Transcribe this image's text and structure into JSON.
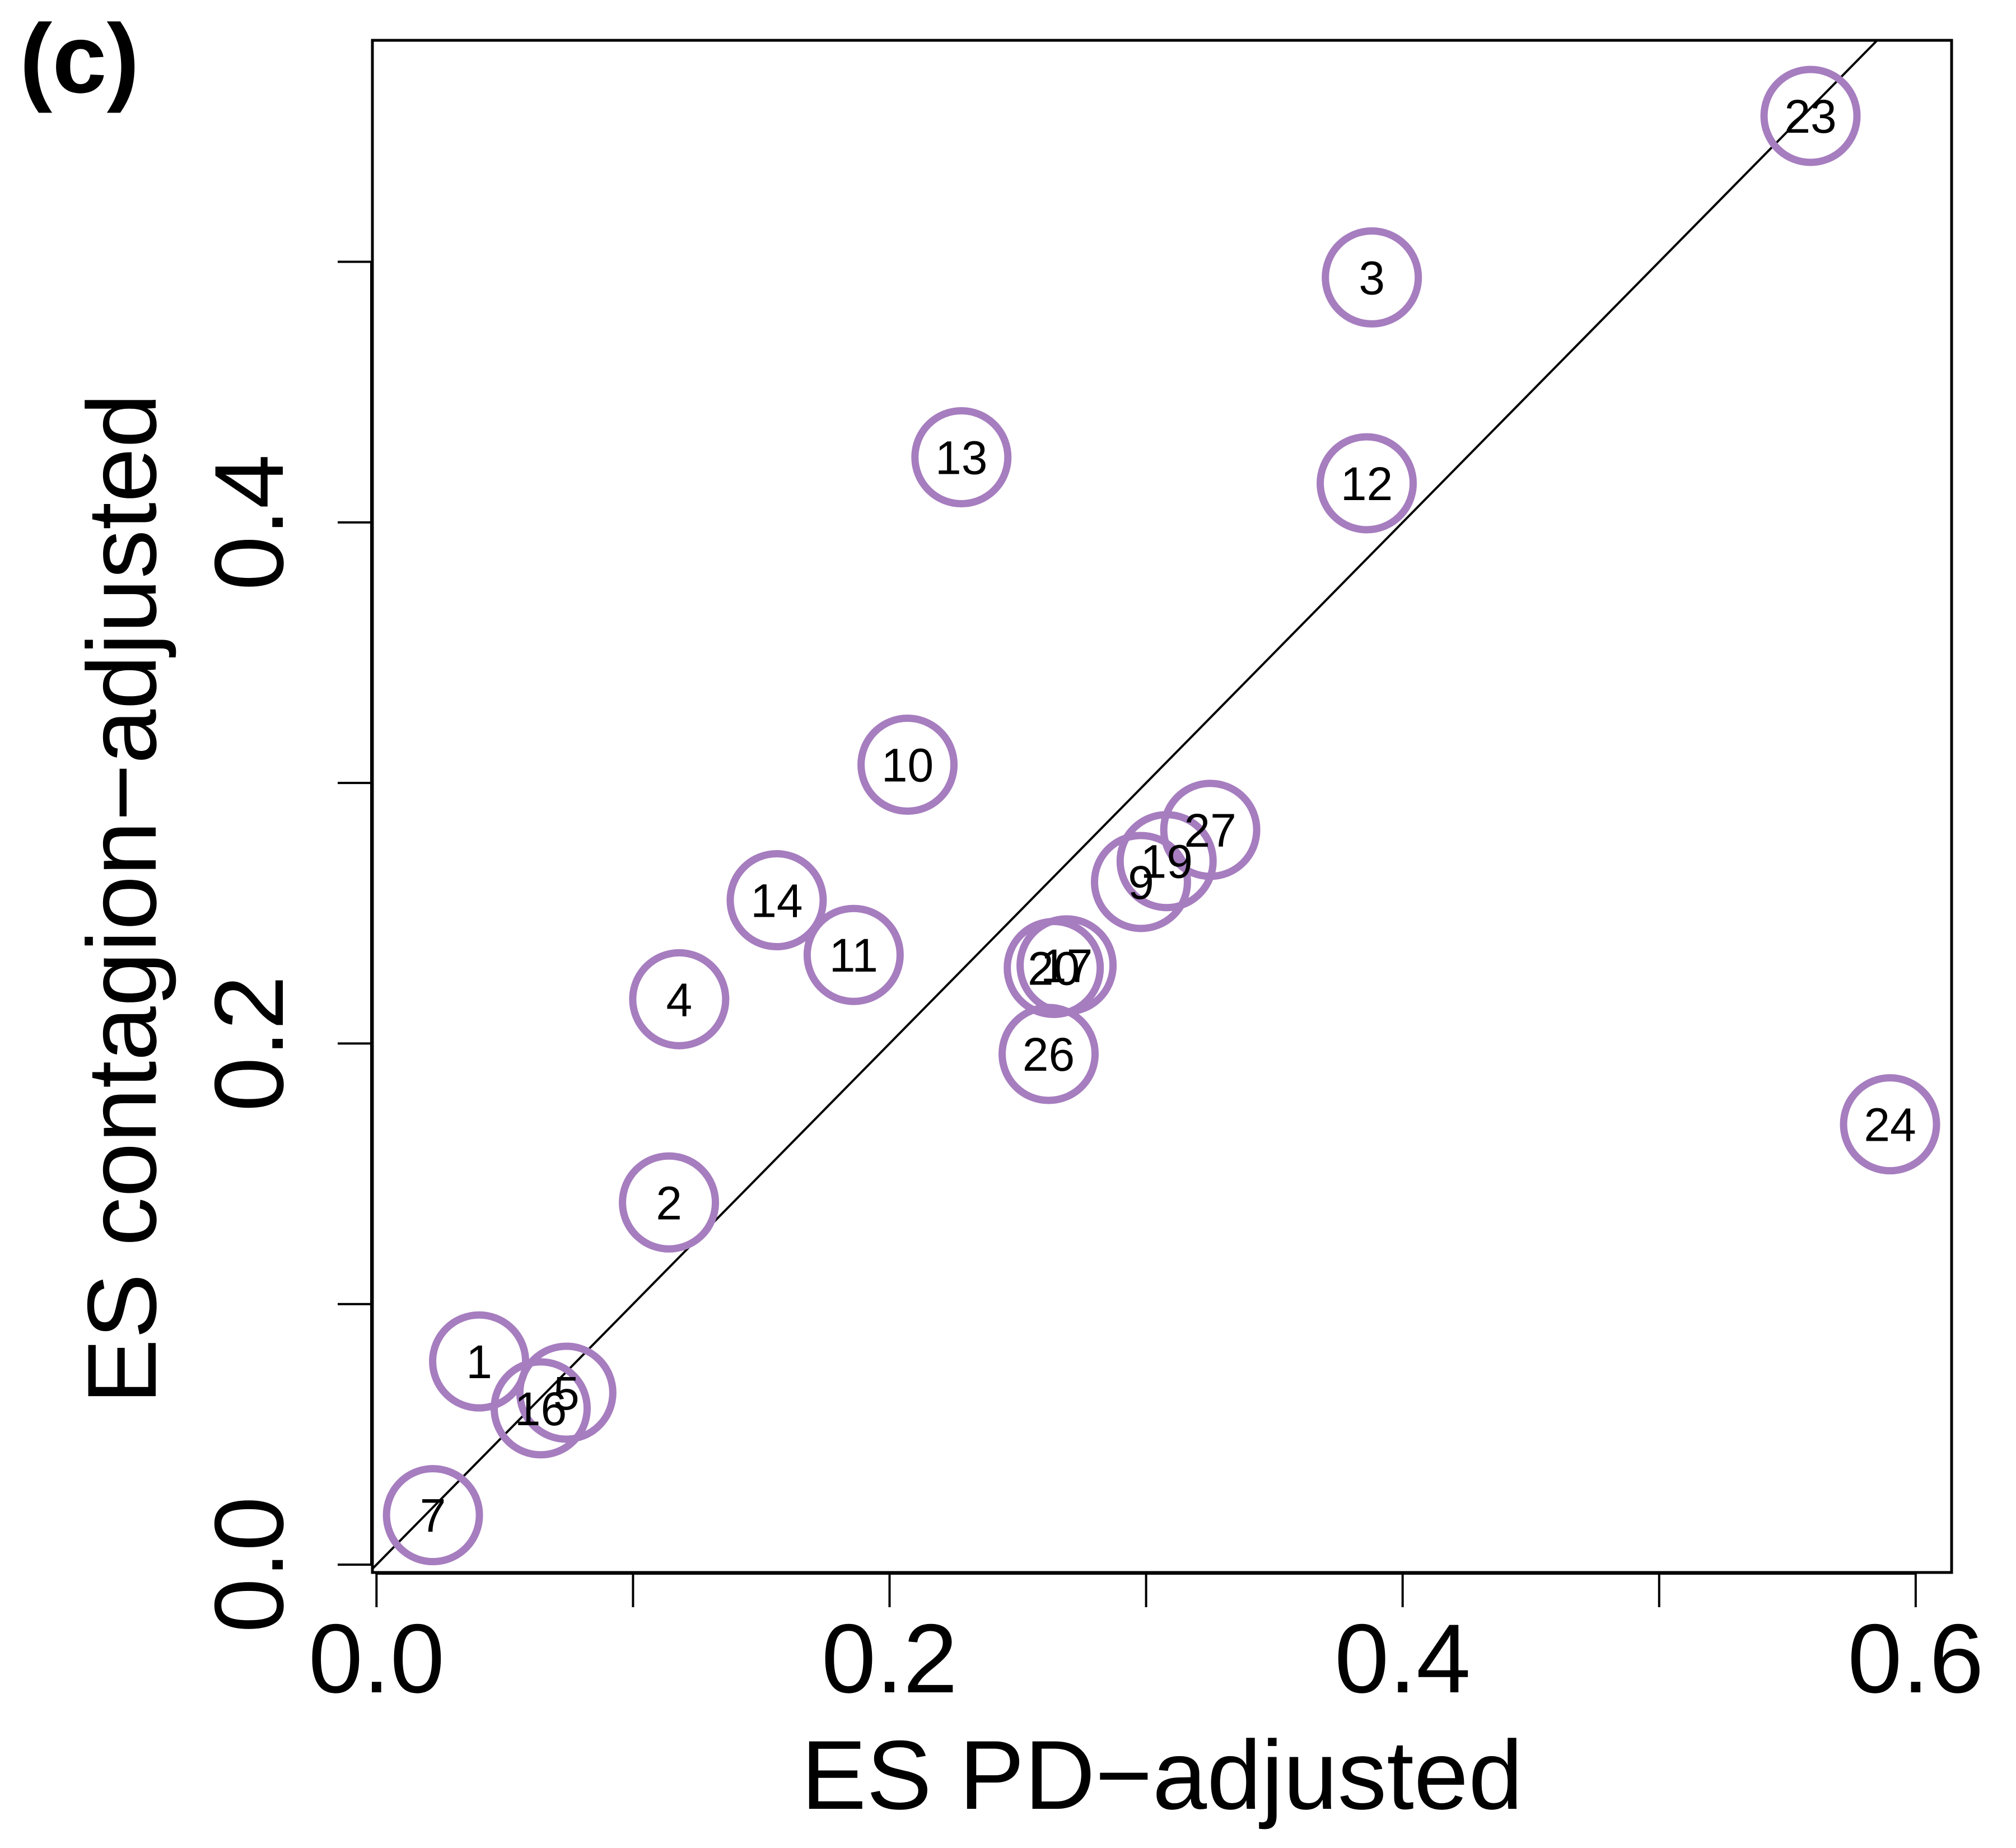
{
  "panel_label": "(c)",
  "colors": {
    "point_stroke": "#A67DBF",
    "axis": "#000000",
    "background": "#FFFFFF"
  },
  "chart_data": {
    "type": "scatter",
    "title": "",
    "xlabel": "ES PD−adjusted",
    "ylabel": "ES contagion−adjusted",
    "xlim": [
      -0.0016,
      0.614
    ],
    "ylim": [
      -0.003,
      0.585
    ],
    "xticks": [
      {
        "value": 0.0,
        "label": "0.0"
      },
      {
        "value": 0.1,
        "label": ""
      },
      {
        "value": 0.2,
        "label": "0.2"
      },
      {
        "value": 0.3,
        "label": ""
      },
      {
        "value": 0.4,
        "label": "0.4"
      },
      {
        "value": 0.5,
        "label": ""
      },
      {
        "value": 0.6,
        "label": "0.6"
      }
    ],
    "yticks": [
      {
        "value": 0.0,
        "label": "0.0"
      },
      {
        "value": 0.1,
        "label": ""
      },
      {
        "value": 0.2,
        "label": "0.2"
      },
      {
        "value": 0.3,
        "label": ""
      },
      {
        "value": 0.4,
        "label": "0.4"
      },
      {
        "value": 0.5,
        "label": ""
      }
    ],
    "reference_line": {
      "type": "identity",
      "slope": 1,
      "intercept": 0
    },
    "points": [
      {
        "label": "1",
        "x": 0.04,
        "y": 0.078
      },
      {
        "label": "2",
        "x": 0.114,
        "y": 0.139
      },
      {
        "label": "3",
        "x": 0.388,
        "y": 0.494
      },
      {
        "label": "4",
        "x": 0.118,
        "y": 0.217
      },
      {
        "label": "5",
        "x": 0.074,
        "y": 0.066
      },
      {
        "label": "7",
        "x": 0.022,
        "y": 0.019
      },
      {
        "label": "9",
        "x": 0.298,
        "y": 0.262
      },
      {
        "label": "10",
        "x": 0.207,
        "y": 0.307
      },
      {
        "label": "11",
        "x": 0.186,
        "y": 0.234
      },
      {
        "label": "12",
        "x": 0.386,
        "y": 0.415
      },
      {
        "label": "13",
        "x": 0.228,
        "y": 0.425
      },
      {
        "label": "14",
        "x": 0.156,
        "y": 0.255
      },
      {
        "label": "16",
        "x": 0.064,
        "y": 0.06
      },
      {
        "label": "17",
        "x": 0.269,
        "y": 0.23
      },
      {
        "label": "19",
        "x": 0.308,
        "y": 0.27
      },
      {
        "label": "20",
        "x": 0.264,
        "y": 0.229
      },
      {
        "label": "23",
        "x": 0.559,
        "y": 0.556
      },
      {
        "label": "24",
        "x": 0.59,
        "y": 0.169
      },
      {
        "label": "26",
        "x": 0.262,
        "y": 0.196
      },
      {
        "label": "27",
        "x": 0.325,
        "y": 0.282
      }
    ]
  }
}
